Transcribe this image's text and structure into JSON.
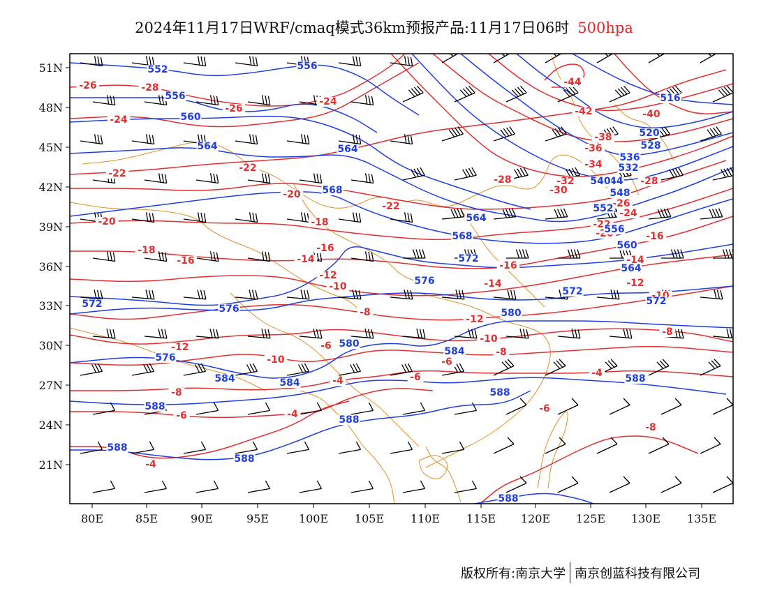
{
  "title": {
    "main": "2024年11月17日WRF/cmaq模式36km预报产品:11月17日06时",
    "level": "500hpa"
  },
  "axes": {
    "lon_labels": [
      "80E",
      "85E",
      "90E",
      "95E",
      "100E",
      "105E",
      "110E",
      "115E",
      "120E",
      "125E",
      "130E",
      "135E"
    ],
    "lat_labels": [
      "51N",
      "48N",
      "45N",
      "42N",
      "39N",
      "36N",
      "33N",
      "30N",
      "27N",
      "24N",
      "21N"
    ]
  },
  "colors": {
    "height_contour": "#1f3fe0",
    "temperature_contour": "#e03030",
    "borders": "#e0902a",
    "wind_barb": "#000000"
  },
  "height_labels": [
    "552",
    "556",
    "556",
    "560",
    "564",
    "564",
    "568",
    "564",
    "568",
    "572",
    "572",
    "576",
    "576",
    "572",
    "580",
    "576",
    "584",
    "584",
    "580",
    "584",
    "588",
    "588",
    "588",
    "588",
    "588",
    "588",
    "588",
    "544",
    "548",
    "552",
    "556",
    "560",
    "564",
    "572",
    "536",
    "532",
    "528",
    "540",
    "516",
    "520"
  ],
  "temperature_labels": [
    "-26",
    "-28",
    "-26",
    "-24",
    "-24",
    "-22",
    "-22",
    "-20",
    "-22",
    "-20",
    "-18",
    "-18",
    "-16",
    "-16",
    "-14",
    "-12",
    "-10",
    "-16",
    "-14",
    "-12",
    "-10",
    "-8",
    "-10",
    "-12",
    "-6",
    "-8",
    "-6",
    "-4",
    "-4",
    "-8",
    "-6",
    "-4",
    "-6",
    "-4",
    "-8",
    "-6",
    "-44",
    "-42",
    "-40",
    "-38",
    "-36",
    "-34",
    "-32",
    "-30",
    "-28",
    "-28",
    "-26",
    "-24",
    "-22",
    "-20",
    "-16",
    "-14",
    "-12",
    "-10",
    "-8"
  ],
  "footer": {
    "copyright": "版权所有:南京大学",
    "company": "南京创蓝科技有限公司"
  }
}
